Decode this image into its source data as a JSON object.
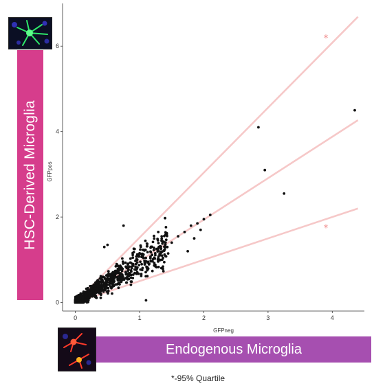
{
  "chart_data": {
    "type": "scatter",
    "title": "",
    "xlabel": "GFPneg",
    "ylabel": "GFPpos",
    "xlim": [
      -0.2,
      4.5
    ],
    "ylim": [
      -0.2,
      7.0
    ],
    "x_ticks": [
      0,
      1,
      2,
      3,
      4
    ],
    "y_ticks": [
      0,
      2,
      4,
      6
    ],
    "grid": false,
    "point_color": "#111111",
    "line_color": "#f6c8c8",
    "star_color": "#f08a8a",
    "lines": [
      {
        "slope": 1.52,
        "intercept": 0,
        "x_end": 4.4
      },
      {
        "slope": 0.97,
        "intercept": 0,
        "x_end": 4.4
      },
      {
        "slope": 0.5,
        "intercept": 0,
        "x_end": 4.4
      }
    ],
    "annotations": [
      {
        "text": "*",
        "x": 3.9,
        "y": 6.2
      },
      {
        "text": "*",
        "x": 3.9,
        "y": 1.75
      }
    ],
    "outliers": [
      [
        4.35,
        4.5
      ],
      [
        2.85,
        4.1
      ],
      [
        2.95,
        3.1
      ],
      [
        3.25,
        2.55
      ],
      [
        2.1,
        2.05
      ],
      [
        2.0,
        1.95
      ],
      [
        1.9,
        1.85
      ],
      [
        1.95,
        1.7
      ],
      [
        1.8,
        1.8
      ],
      [
        1.7,
        1.65
      ],
      [
        1.85,
        1.5
      ],
      [
        1.75,
        1.2
      ],
      [
        0.75,
        1.8
      ],
      [
        0.5,
        1.35
      ],
      [
        0.45,
        1.3
      ],
      [
        1.1,
        0.05
      ],
      [
        1.5,
        1.4
      ],
      [
        1.6,
        1.55
      ],
      [
        1.4,
        1.35
      ],
      [
        1.3,
        1.3
      ]
    ],
    "cluster": {
      "count": 900,
      "x_max": 1.45,
      "median_slope": 0.95,
      "spread": 0.28,
      "seed": 7
    }
  },
  "labels": {
    "hsc": "HSC-Derived Microglia",
    "endogenous": "Endogenous Microglia",
    "footnote": "*-95% Quartile"
  },
  "colors": {
    "hsc_band": "#d63d8c",
    "endogenous_band": "#a64fb0"
  }
}
